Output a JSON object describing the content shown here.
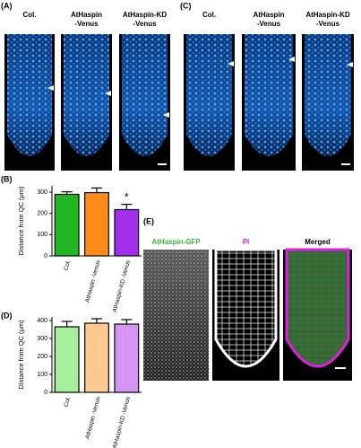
{
  "panels": [
    {
      "label": "(A)",
      "images": [
        [
          "Col."
        ],
        [
          "AtHaspin",
          "-Venus"
        ],
        [
          "AtHaspin-KD",
          "-Venus"
        ]
      ]
    },
    {
      "label": "(C)",
      "images": [
        [
          "Col."
        ],
        [
          "AtHaspin",
          "-Venus"
        ],
        [
          "AtHaspin-KD",
          "-Venus"
        ]
      ]
    },
    {
      "label": "(E)",
      "images": [
        "AtHaspin-GFP",
        "PI",
        "Merged"
      ]
    }
  ],
  "chart_data": [
    {
      "type": "bar",
      "label": "(B)",
      "y_label": "Distance from QC (μm)",
      "categories": [
        "Col.",
        "AtHaspin -Venus",
        "AtHaspin-KD -Venus"
      ],
      "values": [
        290,
        298,
        218
      ],
      "errors": [
        12,
        22,
        25
      ],
      "colors": [
        "#22b522",
        "#ff8c1a",
        "#a12ee8"
      ],
      "significance": [
        null,
        null,
        "*"
      ],
      "ylim": [
        0,
        330
      ],
      "yticks": [
        0,
        100,
        200,
        300
      ]
    },
    {
      "type": "bar",
      "label": "(D)",
      "y_label": "Distance from QC (μm)",
      "categories": [
        "Col.",
        "AtHaspin -Venus",
        "AtHaspin-KD -Venus"
      ],
      "values": [
        365,
        385,
        380
      ],
      "errors": [
        30,
        25,
        25
      ],
      "colors": [
        "#a6ef9c",
        "#ffc890",
        "#d795f2"
      ],
      "significance": [
        null,
        null,
        null
      ],
      "ylim": [
        0,
        420
      ],
      "yticks": [
        0,
        100,
        200,
        300,
        400
      ]
    }
  ]
}
